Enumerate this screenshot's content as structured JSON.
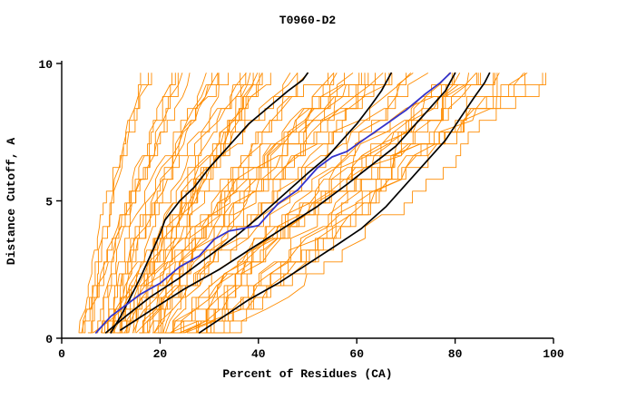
{
  "chart_data": {
    "type": "line",
    "title": "T0960-D2",
    "xlabel": "Percent of Residues (CA)",
    "ylabel": "Distance Cutoff, A",
    "xlim": [
      0,
      100
    ],
    "ylim": [
      0,
      10
    ],
    "x_ticks": [
      0,
      20,
      40,
      60,
      80,
      100
    ],
    "y_ticks": [
      0,
      5,
      10
    ],
    "grid": false,
    "legend": "none",
    "colors": {
      "ensemble": "#ff8c00",
      "highlight": "#3333cc",
      "reference": "#000000",
      "axis": "#000000",
      "background": "#ffffff"
    },
    "highlight_series": {
      "name": "highlighted-model",
      "color": "#3333cc",
      "points": [
        [
          7,
          0.2
        ],
        [
          10,
          0.8
        ],
        [
          13,
          1.2
        ],
        [
          16,
          1.6
        ],
        [
          20,
          2.0
        ],
        [
          24,
          2.6
        ],
        [
          28,
          3.0
        ],
        [
          31,
          3.6
        ],
        [
          34,
          3.9
        ],
        [
          40,
          4.1
        ],
        [
          44,
          4.9
        ],
        [
          48,
          5.4
        ],
        [
          52,
          6.2
        ],
        [
          55,
          6.6
        ],
        [
          58,
          6.8
        ],
        [
          62,
          7.3
        ],
        [
          66,
          7.8
        ],
        [
          70,
          8.3
        ],
        [
          74,
          8.9
        ],
        [
          77,
          9.3
        ],
        [
          79,
          9.65
        ]
      ]
    },
    "reference_series": [
      {
        "name": "reference-model-1",
        "color": "#000000",
        "points": [
          [
            10,
            0.2
          ],
          [
            12,
            0.8
          ],
          [
            14,
            1.5
          ],
          [
            16,
            2.2
          ],
          [
            18,
            3.0
          ],
          [
            20,
            3.8
          ],
          [
            21,
            4.3
          ],
          [
            24,
            5.0
          ],
          [
            27,
            5.5
          ],
          [
            30,
            6.2
          ],
          [
            33,
            6.8
          ],
          [
            35,
            7.2
          ],
          [
            38,
            7.8
          ],
          [
            42,
            8.4
          ],
          [
            46,
            9.0
          ],
          [
            49,
            9.4
          ],
          [
            50,
            9.65
          ]
        ]
      },
      {
        "name": "reference-model-2",
        "color": "#000000",
        "points": [
          [
            9,
            0.2
          ],
          [
            13,
            0.8
          ],
          [
            18,
            1.5
          ],
          [
            24,
            2.2
          ],
          [
            30,
            3.0
          ],
          [
            36,
            3.8
          ],
          [
            40,
            4.4
          ],
          [
            45,
            5.2
          ],
          [
            50,
            6.0
          ],
          [
            54,
            6.6
          ],
          [
            57,
            7.2
          ],
          [
            60,
            7.8
          ],
          [
            63,
            8.5
          ],
          [
            65,
            9.0
          ],
          [
            67,
            9.65
          ]
        ]
      },
      {
        "name": "reference-model-3",
        "color": "#000000",
        "points": [
          [
            12,
            0.3
          ],
          [
            18,
            1.0
          ],
          [
            25,
            1.8
          ],
          [
            32,
            2.5
          ],
          [
            38,
            3.2
          ],
          [
            45,
            4.0
          ],
          [
            52,
            4.8
          ],
          [
            58,
            5.6
          ],
          [
            63,
            6.3
          ],
          [
            68,
            7.0
          ],
          [
            72,
            7.8
          ],
          [
            75,
            8.4
          ],
          [
            78,
            9.0
          ],
          [
            80,
            9.65
          ]
        ]
      },
      {
        "name": "reference-model-4",
        "color": "#000000",
        "points": [
          [
            28,
            0.2
          ],
          [
            33,
            0.8
          ],
          [
            38,
            1.4
          ],
          [
            44,
            2.0
          ],
          [
            50,
            2.7
          ],
          [
            56,
            3.4
          ],
          [
            61,
            4.0
          ],
          [
            66,
            4.8
          ],
          [
            70,
            5.6
          ],
          [
            74,
            6.4
          ],
          [
            78,
            7.2
          ],
          [
            81,
            8.0
          ],
          [
            84,
            8.8
          ],
          [
            86,
            9.3
          ],
          [
            87,
            9.65
          ]
        ]
      }
    ],
    "ensemble": {
      "name": "model-pool",
      "color": "#ff8c00",
      "count": 65,
      "seed": 42,
      "y_start": 0.2,
      "y_top": 9.65,
      "x_start_range": [
        4,
        30
      ],
      "x_end_range": [
        18,
        97
      ]
    }
  }
}
